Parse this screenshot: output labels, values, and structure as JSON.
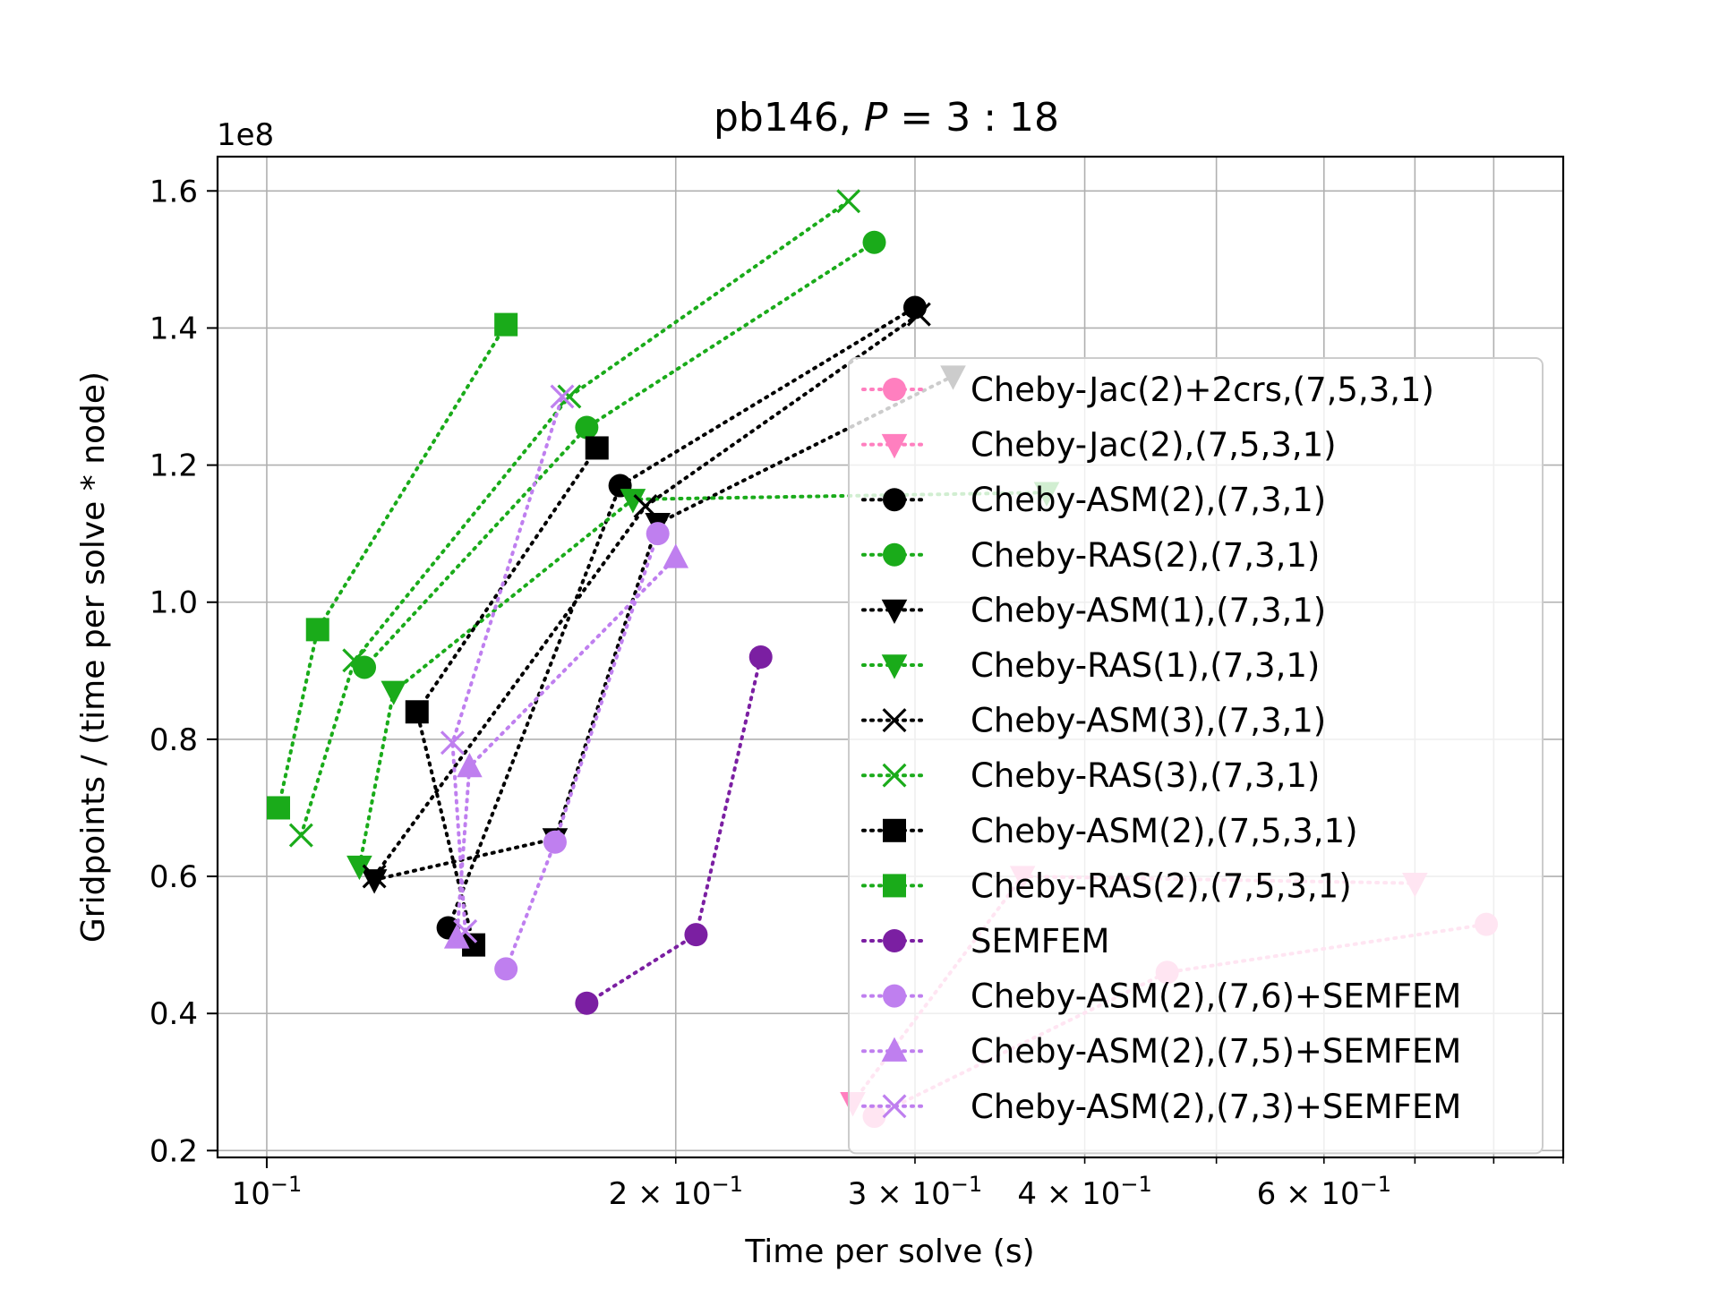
{
  "chart_data": {
    "type": "scatter",
    "title_prefix": "pb146, ",
    "title_math_var": "P",
    "title_math_rest": " = 3 : 18",
    "xlabel": "Time per solve (s)",
    "ylabel": "Gridpoints / (time per solve * node)",
    "y_offset_label": "1e8",
    "x_scale": "log",
    "xlim": [
      0.092,
      0.9
    ],
    "ylim": [
      0.19,
      1.65
    ],
    "y_unit": 100000000,
    "grid": true,
    "legend_placement": "right",
    "x_major_ticks": [
      {
        "value": 0.1,
        "mantissa": "10",
        "exp": "−1"
      }
    ],
    "x_minor_ticks": [
      {
        "value": 0.2,
        "mantissa": "2 × 10",
        "exp": "−1"
      },
      {
        "value": 0.3,
        "mantissa": "3 × 10",
        "exp": "−1"
      },
      {
        "value": 0.4,
        "mantissa": "4 × 10",
        "exp": "−1"
      },
      {
        "value": 0.6,
        "mantissa": "6 × 10",
        "exp": "−1"
      }
    ],
    "x_minor_unlabeled": [
      0.5,
      0.7,
      0.8,
      0.9
    ],
    "y_ticks": [
      {
        "value": 0.2,
        "label": "0.2"
      },
      {
        "value": 0.4,
        "label": "0.4"
      },
      {
        "value": 0.6,
        "label": "0.6"
      },
      {
        "value": 0.8,
        "label": "0.8"
      },
      {
        "value": 1.0,
        "label": "1.0"
      },
      {
        "value": 1.2,
        "label": "1.2"
      },
      {
        "value": 1.4,
        "label": "1.4"
      },
      {
        "value": 1.6,
        "label": "1.6"
      }
    ],
    "series": [
      {
        "name": "Cheby-Jac(2)+2crs,(7,5,3,1)",
        "color": "#ff7fbf",
        "marker": "circle",
        "x": [
          0.28,
          0.46,
          0.79
        ],
        "y": [
          0.25,
          0.46,
          0.53
        ]
      },
      {
        "name": "Cheby-Jac(2),(7,5,3,1)",
        "color": "#ff7fbf",
        "marker": "tri-down",
        "x": [
          0.27,
          0.36,
          0.7
        ],
        "y": [
          0.27,
          0.6,
          0.59
        ]
      },
      {
        "name": "Cheby-ASM(2),(7,3,1)",
        "color": "#000000",
        "marker": "circle",
        "x": [
          0.136,
          0.182,
          0.3
        ],
        "y": [
          0.525,
          1.17,
          1.43
        ]
      },
      {
        "name": "Cheby-RAS(2),(7,3,1)",
        "color": "#1aab1a",
        "marker": "circle",
        "x": [
          0.118,
          0.172,
          0.28
        ],
        "y": [
          0.905,
          1.255,
          1.525
        ]
      },
      {
        "name": "Cheby-ASM(1),(7,3,1)",
        "color": "#000000",
        "marker": "tri-down",
        "x": [
          0.12,
          0.163,
          0.194,
          0.32
        ],
        "y": [
          0.595,
          0.655,
          1.115,
          1.33
        ]
      },
      {
        "name": "Cheby-RAS(1),(7,3,1)",
        "color": "#1aab1a",
        "marker": "tri-down",
        "x": [
          0.117,
          0.124,
          0.186,
          0.375
        ],
        "y": [
          0.615,
          0.87,
          1.15,
          1.16
        ]
      },
      {
        "name": "Cheby-ASM(3),(7,3,1)",
        "color": "#000000",
        "marker": "x",
        "x": [
          0.12,
          0.19,
          0.302
        ],
        "y": [
          0.6,
          1.14,
          1.42
        ]
      },
      {
        "name": "Cheby-RAS(3),(7,3,1)",
        "color": "#1aab1a",
        "marker": "x",
        "x": [
          0.106,
          0.116,
          0.167,
          0.268
        ],
        "y": [
          0.66,
          0.915,
          1.3,
          1.585
        ]
      },
      {
        "name": "Cheby-ASM(2),(7,5,3,1)",
        "color": "#000000",
        "marker": "square",
        "x": [
          0.142,
          0.129,
          0.175
        ],
        "y": [
          0.5,
          0.84,
          1.225
        ]
      },
      {
        "name": "Cheby-RAS(2),(7,5,3,1)",
        "color": "#1aab1a",
        "marker": "square",
        "x": [
          0.102,
          0.109,
          0.15
        ],
        "y": [
          0.7,
          0.96,
          1.405
        ]
      },
      {
        "name": "SEMFEM",
        "color": "#7b1fa2",
        "marker": "circle",
        "x": [
          0.172,
          0.207,
          0.231
        ],
        "y": [
          0.415,
          0.515,
          0.92
        ]
      },
      {
        "name": "Cheby-ASM(2),(7,6)+SEMFEM",
        "color": "#bf7fef",
        "marker": "circle",
        "x": [
          0.15,
          0.163,
          0.194
        ],
        "y": [
          0.465,
          0.65,
          1.1
        ]
      },
      {
        "name": "Cheby-ASM(2),(7,5)+SEMFEM",
        "color": "#bf7fef",
        "marker": "tri-up",
        "x": [
          0.138,
          0.141,
          0.2
        ],
        "y": [
          0.51,
          0.76,
          1.065
        ]
      },
      {
        "name": "Cheby-ASM(2),(7,3)+SEMFEM",
        "color": "#bf7fef",
        "marker": "x",
        "x": [
          0.14,
          0.137,
          0.165
        ],
        "y": [
          0.52,
          0.795,
          1.3
        ]
      }
    ]
  }
}
